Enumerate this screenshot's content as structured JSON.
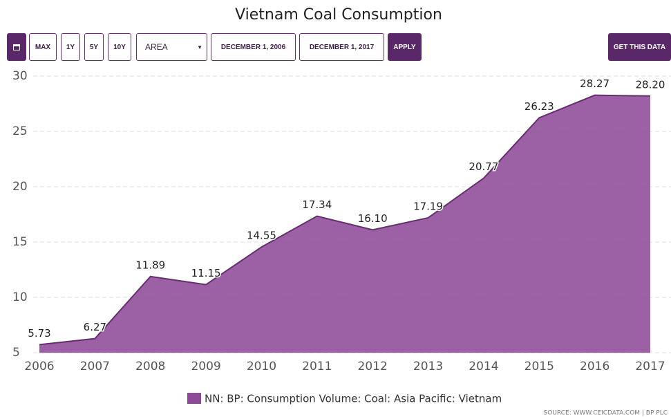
{
  "toolbar": {
    "buttons": [
      "MAX",
      "1Y",
      "5Y",
      "10Y"
    ],
    "chart_type": "AREA",
    "start_date": "DECEMBER 1, 2006",
    "end_date": "DECEMBER 1, 2017",
    "apply": "APPLY",
    "get_data": "GET THIS DATA"
  },
  "chart_data": {
    "type": "area",
    "title": "Vietnam Coal Consumption",
    "x": [
      2006,
      2007,
      2008,
      2009,
      2010,
      2011,
      2012,
      2013,
      2014,
      2015,
      2016,
      2017
    ],
    "series": [
      {
        "name": "NN: BP: Consumption Volume: Coal: Asia Pacific: Vietnam",
        "color": "#8e4a97",
        "values": [
          5.73,
          6.27,
          11.89,
          11.15,
          14.55,
          17.34,
          16.1,
          17.19,
          20.77,
          26.23,
          28.27,
          28.2
        ],
        "value_labels": [
          "5.73",
          "6.27",
          "11.89",
          "11.15",
          "14.55",
          "17.34",
          "16.10",
          "17.19",
          "20.77",
          "26.23",
          "28.27",
          "28.20"
        ]
      }
    ],
    "xlim": [
      2006,
      2017
    ],
    "xticks": [
      2006,
      2007,
      2008,
      2009,
      2010,
      2011,
      2012,
      2013,
      2014,
      2015,
      2016,
      2017
    ],
    "ylim": [
      5,
      30
    ],
    "yticks": [
      5,
      10,
      15,
      20,
      25,
      30
    ],
    "grid": true,
    "source": "SOURCE: WWW.CEICDATA.COM | BP PLC"
  }
}
